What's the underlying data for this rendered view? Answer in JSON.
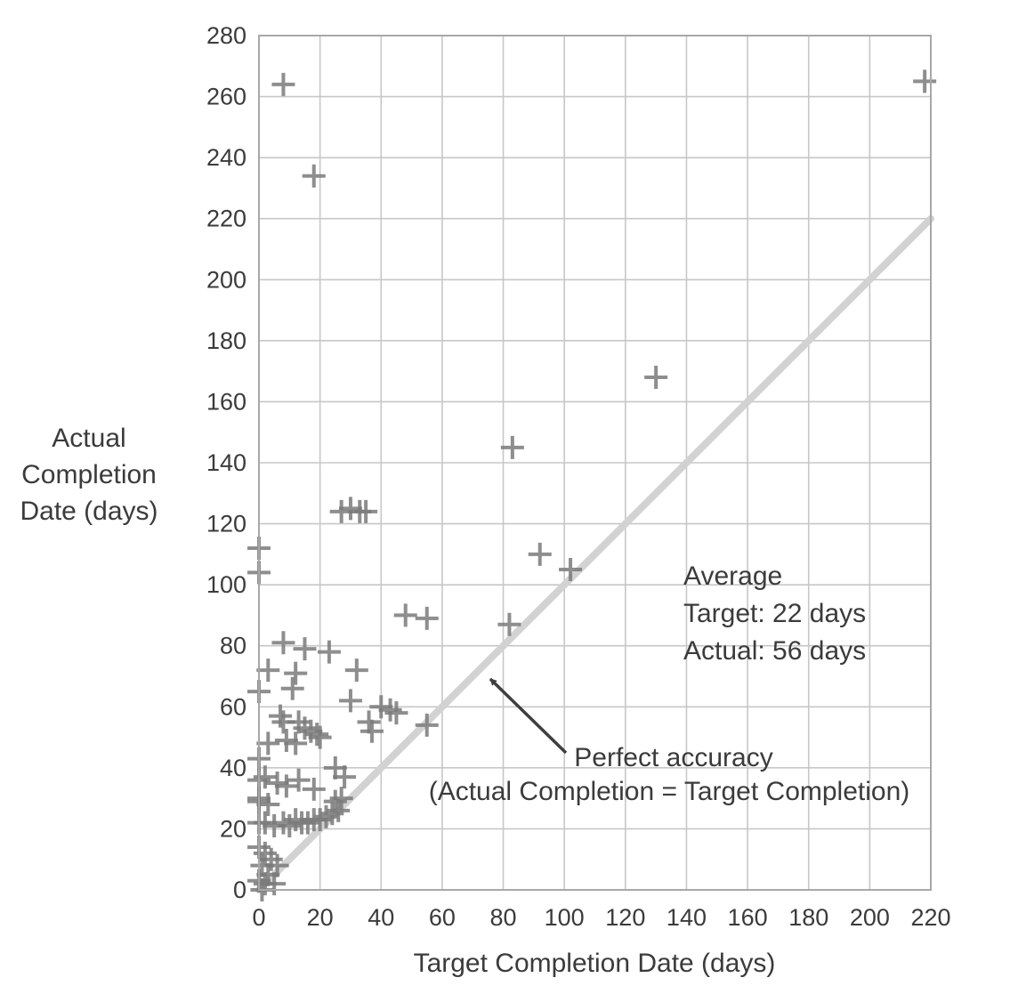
{
  "chart_data": {
    "type": "scatter",
    "title": "",
    "xlabel": "Target Completion Date (days)",
    "ylabel": "Actual Completion Date (days)",
    "ylabel_lines": [
      "Actual",
      "Completion",
      "Date (days)"
    ],
    "xlim": [
      0,
      220
    ],
    "ylim": [
      0,
      280
    ],
    "xticks": [
      0,
      20,
      40,
      60,
      80,
      100,
      120,
      140,
      160,
      180,
      200,
      220
    ],
    "yticks": [
      0,
      20,
      40,
      60,
      80,
      100,
      120,
      140,
      160,
      180,
      200,
      220,
      240,
      260,
      280
    ],
    "grid": true,
    "marker": "plus",
    "points": [
      [
        8,
        264
      ],
      [
        18,
        234
      ],
      [
        218,
        265
      ],
      [
        130,
        168
      ],
      [
        83,
        145
      ],
      [
        27,
        124
      ],
      [
        30,
        125
      ],
      [
        33,
        124
      ],
      [
        35,
        124
      ],
      [
        0,
        112
      ],
      [
        0,
        104
      ],
      [
        92,
        110
      ],
      [
        102,
        105
      ],
      [
        48,
        90
      ],
      [
        55,
        89
      ],
      [
        82,
        87
      ],
      [
        8,
        81
      ],
      [
        15,
        79
      ],
      [
        23,
        78
      ],
      [
        3,
        72
      ],
      [
        12,
        71
      ],
      [
        32,
        72
      ],
      [
        11,
        66
      ],
      [
        0,
        65
      ],
      [
        30,
        62
      ],
      [
        40,
        60
      ],
      [
        43,
        59
      ],
      [
        45,
        58
      ],
      [
        36,
        55
      ],
      [
        37,
        52
      ],
      [
        55,
        54
      ],
      [
        7,
        57
      ],
      [
        8,
        55
      ],
      [
        13,
        55
      ],
      [
        15,
        53
      ],
      [
        17,
        52
      ],
      [
        19,
        51
      ],
      [
        9,
        49
      ],
      [
        12,
        48
      ],
      [
        20,
        50
      ],
      [
        3,
        48
      ],
      [
        0,
        43
      ],
      [
        25,
        40
      ],
      [
        28,
        37
      ],
      [
        0,
        36
      ],
      [
        2,
        37
      ],
      [
        6,
        35
      ],
      [
        9,
        34
      ],
      [
        13,
        36
      ],
      [
        18,
        33
      ],
      [
        0,
        30
      ],
      [
        0,
        29
      ],
      [
        3,
        28
      ],
      [
        25,
        29
      ],
      [
        27,
        30
      ],
      [
        0,
        22
      ],
      [
        2,
        22
      ],
      [
        5,
        21
      ],
      [
        8,
        22
      ],
      [
        10,
        21
      ],
      [
        12,
        23
      ],
      [
        14,
        22
      ],
      [
        16,
        22
      ],
      [
        18,
        23
      ],
      [
        20,
        23
      ],
      [
        22,
        24
      ],
      [
        24,
        25
      ],
      [
        26,
        26
      ],
      [
        0,
        14
      ],
      [
        2,
        12
      ],
      [
        4,
        10
      ],
      [
        1,
        8
      ],
      [
        3,
        5
      ],
      [
        0,
        3
      ],
      [
        2,
        2
      ],
      [
        5,
        2
      ],
      [
        1,
        0
      ],
      [
        6,
        8
      ]
    ],
    "reference_line": {
      "from": [
        0,
        0
      ],
      "to": [
        220,
        220
      ]
    },
    "annotations": {
      "average": {
        "lines": [
          "Average",
          "Target: 22 days",
          "Actual: 56 days"
        ]
      },
      "perfect_accuracy": {
        "lines": [
          "Perfect accuracy",
          "(Actual Completion = Target Completion)"
        ]
      }
    },
    "colors": {
      "marker": "#7a7a7a",
      "grid": "#c7c7c7",
      "axis": "#a8a8a8",
      "reference_line": "#d2d2d2",
      "text": "#3b3b3b",
      "arrow": "#3f3f3f"
    }
  }
}
